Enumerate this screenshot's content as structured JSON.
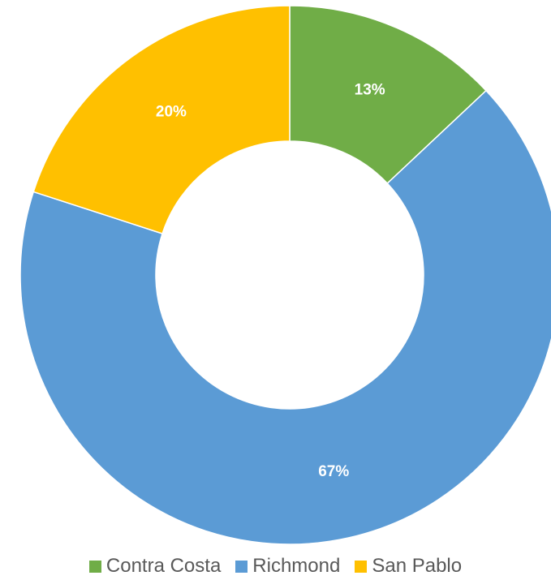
{
  "chart_data": {
    "type": "pie",
    "donut": true,
    "title": "",
    "categories": [
      "Contra Costa",
      "Richmond",
      "San Pablo"
    ],
    "values": [
      13,
      67,
      20
    ],
    "data_labels": [
      "13%",
      "67%",
      "20%"
    ],
    "colors": [
      "#70ad47",
      "#5b9bd5",
      "#ffc000"
    ],
    "legend": {
      "position": "bottom",
      "entries": [
        "Contra Costa",
        "Richmond",
        "San Pablo"
      ]
    }
  }
}
